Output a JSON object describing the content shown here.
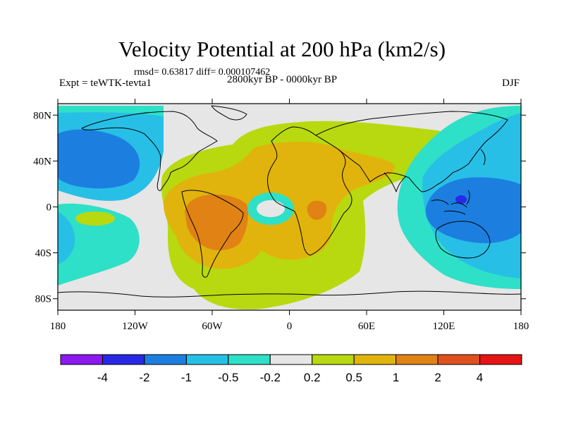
{
  "figure": {
    "title": "Velocity Potential at 200 hPa (km2/s)",
    "stats_line": "rmsd= 0.63817 diff= 0.000107462",
    "experiment_label": "Expt = teWTK-tevta1",
    "period_label": "2800kyr BP - 0000kyr BP",
    "season_label": "DJF"
  },
  "chart_data": {
    "type": "filled-contour-map",
    "title": "Velocity Potential at 200 hPa (km2/s)",
    "variable": "velocity potential difference",
    "level": "200 hPa",
    "units": "km2/s",
    "season": "DJF",
    "comparison": "2800kyr BP - 0000kyr BP",
    "experiment": "teWTK-tevta1",
    "rmsd": 0.63817,
    "diff": 0.000107462,
    "x_range": [
      -180,
      180
    ],
    "y_range": [
      -90,
      90
    ],
    "x_ticks": [
      {
        "value": -180,
        "label": "180"
      },
      {
        "value": -120,
        "label": "120W"
      },
      {
        "value": -60,
        "label": "60W"
      },
      {
        "value": 0,
        "label": "0"
      },
      {
        "value": 60,
        "label": "60E"
      },
      {
        "value": 120,
        "label": "120E"
      },
      {
        "value": 180,
        "label": "180"
      }
    ],
    "y_ticks": [
      {
        "value": 80,
        "label": "80N"
      },
      {
        "value": 40,
        "label": "40N"
      },
      {
        "value": 0,
        "label": "0"
      },
      {
        "value": -40,
        "label": "40S"
      },
      {
        "value": -80,
        "label": "80S"
      }
    ],
    "colorbar": {
      "labels": [
        "-4",
        "-2",
        "-1",
        "-0.5",
        "-0.2",
        "0.2",
        "0.5",
        "1",
        "2",
        "4"
      ],
      "colors": [
        "#8c19f0",
        "#2828e6",
        "#1c7fe0",
        "#28bfe6",
        "#2ee0c8",
        "#e6e6e6",
        "#b8d90f",
        "#e0b40c",
        "#e08214",
        "#e0501e",
        "#e61414"
      ]
    },
    "regions": [
      {
        "name": "Pacific positive band",
        "lon": [
          -130,
          -40
        ],
        "lat": [
          -70,
          45
        ],
        "class": "0.2 to 0.5"
      },
      {
        "name": "South America maximum",
        "lon": [
          -75,
          -30
        ],
        "lat": [
          -35,
          20
        ],
        "class": "1 to 2"
      },
      {
        "name": "Africa-Atlantic",
        "lon": [
          -35,
          45
        ],
        "lat": [
          -35,
          45
        ],
        "class": "0.5 to 1"
      },
      {
        "name": "Central Africa maximum",
        "lon": [
          10,
          35
        ],
        "lat": [
          -5,
          8
        ],
        "class": "1 to 2"
      },
      {
        "name": "Eastern Atlantic minimum",
        "lon": [
          -22,
          0
        ],
        "lat": [
          -8,
          8
        ],
        "class": "-0.5 to -0.2"
      },
      {
        "name": "North Pacific negative",
        "lon": [
          -180,
          -110
        ],
        "lat": [
          10,
          70
        ],
        "class": "-1 to -0.5"
      },
      {
        "name": "Maritime continent negative",
        "lon": [
          80,
          180
        ],
        "lat": [
          -45,
          40
        ],
        "class": "-1 to -0.5"
      },
      {
        "name": "Maritime continent minimum",
        "lon": [
          120,
          150
        ],
        "lat": [
          -5,
          15
        ],
        "class": "-2 to -1"
      },
      {
        "name": "South Pacific negative",
        "lon": [
          -180,
          -140
        ],
        "lat": [
          -65,
          0
        ],
        "class": "-0.5 to -0.2"
      }
    ]
  }
}
